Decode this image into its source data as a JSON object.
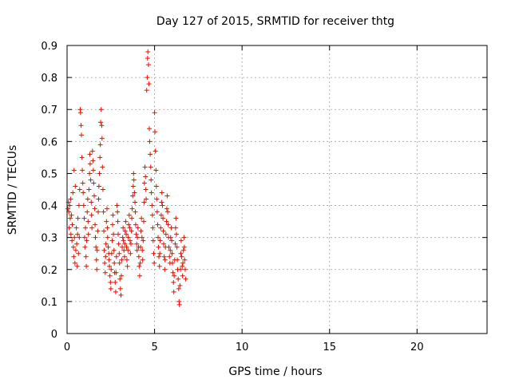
{
  "chart_data": {
    "type": "scatter",
    "title": "Day 127 of 2015, SRMTID for receiver thtg",
    "xlabel": "GPS time / hours",
    "ylabel": "SRMTID / TECUs",
    "xlim": [
      0,
      24
    ],
    "ylim": [
      0,
      0.9
    ],
    "xticks": [
      0,
      5,
      10,
      15,
      20
    ],
    "yticks": [
      0,
      0.1,
      0.2,
      0.3,
      0.4,
      0.5,
      0.6,
      0.7,
      0.8,
      0.9
    ],
    "grid": true,
    "marker": "plus",
    "series": [
      {
        "name": "SRMTID",
        "color": "#ff0000",
        "points": [
          [
            0.05,
            0.39
          ],
          [
            0.08,
            0.41
          ],
          [
            0.1,
            0.38
          ],
          [
            0.12,
            0.33
          ],
          [
            0.15,
            0.4
          ],
          [
            0.18,
            0.36
          ],
          [
            0.2,
            0.42
          ],
          [
            0.22,
            0.31
          ],
          [
            0.25,
            0.37
          ],
          [
            0.28,
            0.29
          ],
          [
            0.3,
            0.34
          ],
          [
            0.33,
            0.44
          ],
          [
            0.36,
            0.27
          ],
          [
            0.38,
            0.24
          ],
          [
            0.4,
            0.51
          ],
          [
            0.42,
            0.3
          ],
          [
            0.45,
            0.22
          ],
          [
            0.47,
            0.46
          ],
          [
            0.5,
            0.26
          ],
          [
            0.53,
            0.33
          ],
          [
            0.55,
            0.28
          ],
          [
            0.58,
            0.21
          ],
          [
            0.6,
            0.31
          ],
          [
            0.62,
            0.36
          ],
          [
            0.65,
            0.25
          ],
          [
            0.68,
            0.4
          ],
          [
            0.7,
            0.3
          ],
          [
            0.72,
            0.45
          ],
          [
            0.75,
            0.7
          ],
          [
            0.77,
            0.69
          ],
          [
            0.8,
            0.65
          ],
          [
            0.82,
            0.62
          ],
          [
            0.85,
            0.55
          ],
          [
            0.87,
            0.51
          ],
          [
            0.9,
            0.47
          ],
          [
            0.92,
            0.44
          ],
          [
            0.95,
            0.4
          ],
          [
            0.98,
            0.36
          ],
          [
            1.0,
            0.3
          ],
          [
            1.02,
            0.27
          ],
          [
            1.05,
            0.33
          ],
          [
            1.08,
            0.24
          ],
          [
            1.1,
            0.21
          ],
          [
            1.12,
            0.29
          ],
          [
            1.15,
            0.38
          ],
          [
            1.18,
            0.42
          ],
          [
            1.2,
            0.35
          ],
          [
            1.22,
            0.31
          ],
          [
            1.25,
            0.45
          ],
          [
            1.28,
            0.5
          ],
          [
            1.3,
            0.56
          ],
          [
            1.32,
            0.53
          ],
          [
            1.35,
            0.48
          ],
          [
            1.38,
            0.41
          ],
          [
            1.4,
            0.37
          ],
          [
            1.42,
            0.33
          ],
          [
            1.45,
            0.57
          ],
          [
            1.48,
            0.54
          ],
          [
            1.5,
            0.51
          ],
          [
            1.52,
            0.47
          ],
          [
            1.55,
            0.43
          ],
          [
            1.58,
            0.39
          ],
          [
            1.6,
            0.34
          ],
          [
            1.62,
            0.3
          ],
          [
            1.65,
            0.27
          ],
          [
            1.68,
            0.23
          ],
          [
            1.7,
            0.2
          ],
          [
            1.72,
            0.26
          ],
          [
            1.75,
            0.32
          ],
          [
            1.78,
            0.38
          ],
          [
            1.8,
            0.42
          ],
          [
            1.82,
            0.46
          ],
          [
            1.85,
            0.5
          ],
          [
            1.88,
            0.55
          ],
          [
            1.9,
            0.59
          ],
          [
            1.92,
            0.66
          ],
          [
            1.95,
            0.7
          ],
          [
            1.98,
            0.65
          ],
          [
            2.0,
            0.61
          ],
          [
            2.02,
            0.52
          ],
          [
            2.05,
            0.45
          ],
          [
            2.08,
            0.38
          ],
          [
            2.1,
            0.32
          ],
          [
            2.12,
            0.26
          ],
          [
            2.15,
            0.22
          ],
          [
            2.18,
            0.19
          ],
          [
            2.2,
            0.24
          ],
          [
            2.22,
            0.28
          ],
          [
            2.25,
            0.35
          ],
          [
            2.28,
            0.39
          ],
          [
            2.3,
            0.33
          ],
          [
            2.32,
            0.3
          ],
          [
            2.35,
            0.27
          ],
          [
            2.38,
            0.25
          ],
          [
            2.4,
            0.23
          ],
          [
            2.42,
            0.21
          ],
          [
            2.45,
            0.18
          ],
          [
            2.48,
            0.16
          ],
          [
            2.5,
            0.14
          ],
          [
            2.52,
            0.2
          ],
          [
            2.55,
            0.25
          ],
          [
            2.58,
            0.29
          ],
          [
            2.6,
            0.34
          ],
          [
            2.62,
            0.37
          ],
          [
            2.65,
            0.31
          ],
          [
            2.68,
            0.26
          ],
          [
            2.7,
            0.22
          ],
          [
            2.72,
            0.19
          ],
          [
            2.75,
            0.16
          ],
          [
            2.78,
            0.13
          ],
          [
            2.8,
            0.19
          ],
          [
            2.82,
            0.24
          ],
          [
            2.85,
            0.4
          ],
          [
            2.88,
            0.38
          ],
          [
            2.9,
            0.35
          ],
          [
            2.92,
            0.31
          ],
          [
            2.95,
            0.28
          ],
          [
            2.98,
            0.25
          ],
          [
            3.0,
            0.22
          ],
          [
            3.02,
            0.17
          ],
          [
            3.05,
            0.14
          ],
          [
            3.08,
            0.12
          ],
          [
            3.1,
            0.18
          ],
          [
            3.12,
            0.23
          ],
          [
            3.15,
            0.27
          ],
          [
            3.18,
            0.3
          ],
          [
            3.2,
            0.33
          ],
          [
            3.22,
            0.29
          ],
          [
            3.25,
            0.26
          ],
          [
            3.28,
            0.24
          ],
          [
            3.3,
            0.28
          ],
          [
            3.32,
            0.32
          ],
          [
            3.35,
            0.35
          ],
          [
            3.38,
            0.31
          ],
          [
            3.4,
            0.27
          ],
          [
            3.42,
            0.23
          ],
          [
            3.45,
            0.21
          ],
          [
            3.48,
            0.26
          ],
          [
            3.5,
            0.3
          ],
          [
            3.52,
            0.34
          ],
          [
            3.55,
            0.37
          ],
          [
            3.58,
            0.33
          ],
          [
            3.6,
            0.29
          ],
          [
            3.62,
            0.25
          ],
          [
            3.65,
            0.28
          ],
          [
            3.68,
            0.32
          ],
          [
            3.7,
            0.36
          ],
          [
            3.72,
            0.39
          ],
          [
            3.75,
            0.43
          ],
          [
            3.78,
            0.46
          ],
          [
            3.8,
            0.5
          ],
          [
            3.82,
            0.48
          ],
          [
            3.85,
            0.44
          ],
          [
            3.88,
            0.41
          ],
          [
            3.9,
            0.38
          ],
          [
            3.92,
            0.34
          ],
          [
            3.95,
            0.31
          ],
          [
            3.98,
            0.28
          ],
          [
            4.0,
            0.26
          ],
          [
            4.02,
            0.3
          ],
          [
            4.05,
            0.33
          ],
          [
            4.08,
            0.27
          ],
          [
            4.1,
            0.24
          ],
          [
            4.12,
            0.21
          ],
          [
            4.15,
            0.18
          ],
          [
            4.18,
            0.22
          ],
          [
            4.2,
            0.27
          ],
          [
            4.22,
            0.32
          ],
          [
            4.25,
            0.36
          ],
          [
            4.28,
            0.3
          ],
          [
            4.3,
            0.26
          ],
          [
            4.32,
            0.23
          ],
          [
            4.35,
            0.29
          ],
          [
            4.38,
            0.35
          ],
          [
            4.4,
            0.41
          ],
          [
            4.42,
            0.47
          ],
          [
            4.45,
            0.52
          ],
          [
            4.48,
            0.49
          ],
          [
            4.5,
            0.45
          ],
          [
            4.52,
            0.42
          ],
          [
            4.55,
            0.76
          ],
          [
            4.58,
            0.8
          ],
          [
            4.6,
            0.86
          ],
          [
            4.62,
            0.88
          ],
          [
            4.65,
            0.84
          ],
          [
            4.68,
            0.78
          ],
          [
            4.7,
            0.64
          ],
          [
            4.72,
            0.6
          ],
          [
            4.75,
            0.56
          ],
          [
            4.78,
            0.52
          ],
          [
            4.8,
            0.48
          ],
          [
            4.82,
            0.44
          ],
          [
            4.85,
            0.4
          ],
          [
            4.88,
            0.37
          ],
          [
            4.9,
            0.33
          ],
          [
            4.92,
            0.29
          ],
          [
            4.95,
            0.25
          ],
          [
            4.98,
            0.22
          ],
          [
            5.0,
            0.69
          ],
          [
            5.02,
            0.63
          ],
          [
            5.05,
            0.57
          ],
          [
            5.08,
            0.51
          ],
          [
            5.1,
            0.46
          ],
          [
            5.12,
            0.42
          ],
          [
            5.15,
            0.38
          ],
          [
            5.18,
            0.34
          ],
          [
            5.2,
            0.3
          ],
          [
            5.22,
            0.27
          ],
          [
            5.25,
            0.24
          ],
          [
            5.28,
            0.21
          ],
          [
            5.3,
            0.25
          ],
          [
            5.32,
            0.29
          ],
          [
            5.35,
            0.33
          ],
          [
            5.38,
            0.37
          ],
          [
            5.4,
            0.41
          ],
          [
            5.42,
            0.44
          ],
          [
            5.45,
            0.4
          ],
          [
            5.48,
            0.36
          ],
          [
            5.5,
            0.32
          ],
          [
            5.52,
            0.28
          ],
          [
            5.55,
            0.24
          ],
          [
            5.58,
            0.2
          ],
          [
            5.6,
            0.23
          ],
          [
            5.62,
            0.27
          ],
          [
            5.65,
            0.31
          ],
          [
            5.68,
            0.35
          ],
          [
            5.7,
            0.39
          ],
          [
            5.72,
            0.43
          ],
          [
            5.75,
            0.38
          ],
          [
            5.78,
            0.34
          ],
          [
            5.8,
            0.3
          ],
          [
            5.82,
            0.27
          ],
          [
            5.85,
            0.24
          ],
          [
            5.88,
            0.22
          ],
          [
            5.9,
            0.26
          ],
          [
            5.92,
            0.3
          ],
          [
            5.95,
            0.33
          ],
          [
            5.98,
            0.29
          ],
          [
            6.0,
            0.25
          ],
          [
            6.02,
            0.22
          ],
          [
            6.05,
            0.19
          ],
          [
            6.08,
            0.16
          ],
          [
            6.1,
            0.13
          ],
          [
            6.12,
            0.18
          ],
          [
            6.15,
            0.23
          ],
          [
            6.18,
            0.28
          ],
          [
            6.2,
            0.33
          ],
          [
            6.22,
            0.36
          ],
          [
            6.25,
            0.31
          ],
          [
            6.28,
            0.27
          ],
          [
            6.3,
            0.23
          ],
          [
            6.32,
            0.2
          ],
          [
            6.35,
            0.17
          ],
          [
            6.38,
            0.14
          ],
          [
            6.4,
            0.1
          ],
          [
            6.42,
            0.09
          ],
          [
            6.45,
            0.15
          ],
          [
            6.48,
            0.2
          ],
          [
            6.5,
            0.25
          ],
          [
            6.52,
            0.29
          ],
          [
            6.55,
            0.24
          ],
          [
            6.58,
            0.21
          ],
          [
            6.6,
            0.18
          ],
          [
            6.62,
            0.22
          ],
          [
            6.65,
            0.26
          ],
          [
            6.68,
            0.3
          ],
          [
            6.7,
            0.27
          ],
          [
            6.72,
            0.23
          ],
          [
            6.75,
            0.2
          ],
          [
            6.78,
            0.17
          ]
        ]
      }
    ]
  }
}
